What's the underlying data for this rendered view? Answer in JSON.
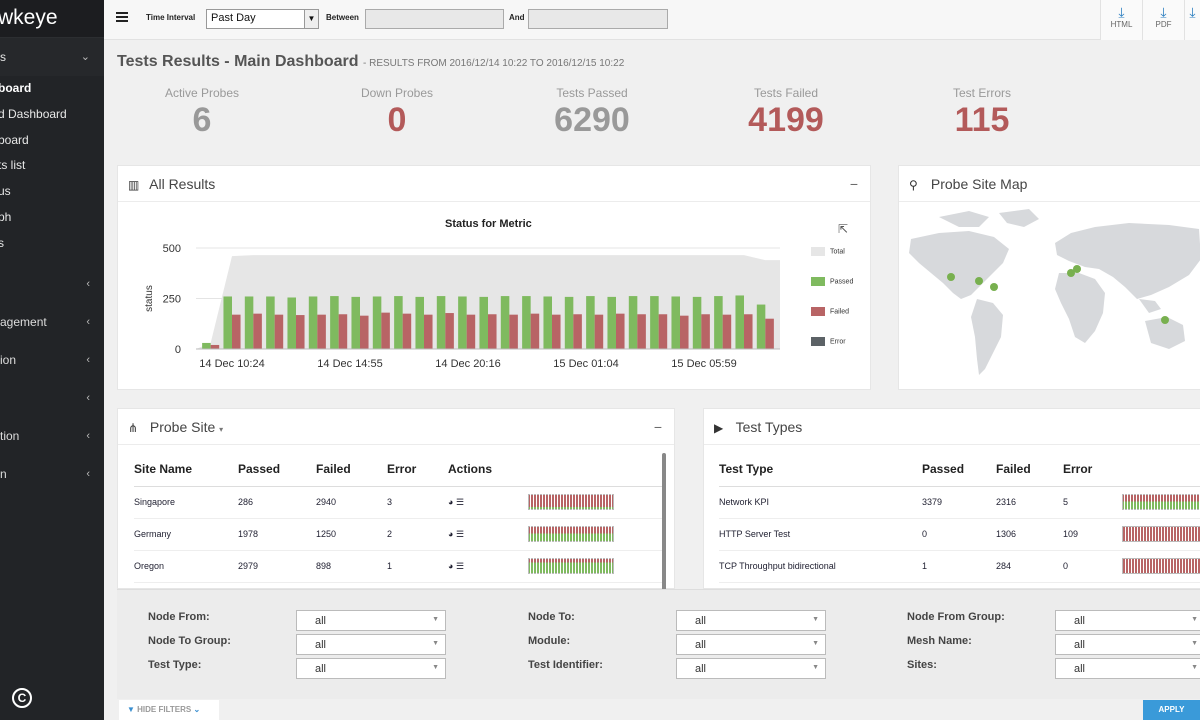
{
  "brand": "wkeye",
  "sidebar": {
    "group_label": "s",
    "items": [
      {
        "label": "board",
        "active": true
      },
      {
        "label": "d Dashboard",
        "active": false
      },
      {
        "label": "board",
        "active": false
      },
      {
        "label": "ts list",
        "active": false
      },
      {
        "label": "us",
        "active": false
      },
      {
        "label": "ph",
        "active": false
      },
      {
        "label": "s",
        "active": false
      }
    ],
    "collapsed_groups": [
      "",
      "agement",
      "ion",
      "",
      "tion",
      "n"
    ]
  },
  "topbar": {
    "time_interval_label": "Time Interval",
    "time_interval_value": "Past Day",
    "between_label": "Between",
    "and_label": "And",
    "between_value": "",
    "and_value": "",
    "export_html": "HTML",
    "export_pdf": "PDF"
  },
  "page": {
    "title": "Tests Results - Main Dashboard",
    "subtitle": "- RESULTS FROM 2016/12/14 10:22 TO 2016/12/15 10:22"
  },
  "kpis": [
    {
      "label": "Active Probes",
      "value": "6",
      "color": "#999999"
    },
    {
      "label": "Down Probes",
      "value": "0",
      "color": "#b35a5a"
    },
    {
      "label": "Tests Passed",
      "value": "6290",
      "color": "#999999"
    },
    {
      "label": "Tests Failed",
      "value": "4199",
      "color": "#b35a5a"
    },
    {
      "label": "Test Errors",
      "value": "115",
      "color": "#b35a5a"
    }
  ],
  "all_results": {
    "title": "All Results"
  },
  "chart_data": {
    "type": "bar",
    "title": "Status for Metric",
    "ylabel": "status",
    "xlabel": "",
    "ylim": [
      0,
      500
    ],
    "yticks": [
      "0",
      "250",
      "500"
    ],
    "xtick_labels": [
      "14 Dec 10:24",
      "14 Dec 14:55",
      "14 Dec 20:16",
      "15 Dec 01:04",
      "15 Dec 05:59"
    ],
    "legend": [
      "Total",
      "Passed",
      "Failed",
      "Error"
    ],
    "colors": {
      "total": "#e6e6e6",
      "passed": "#7fba5f",
      "failed": "#b86465",
      "error": "#5c6266"
    },
    "total": [
      30,
      460,
      465,
      465,
      465,
      465,
      465,
      465,
      465,
      465,
      465,
      465,
      465,
      465,
      465,
      465,
      465,
      465,
      465,
      465,
      465,
      465,
      465,
      465,
      465,
      465,
      440
    ],
    "passed": [
      30,
      260,
      260,
      260,
      255,
      260,
      262,
      258,
      260,
      262,
      258,
      262,
      260,
      258,
      262,
      262,
      260,
      258,
      262,
      258,
      262,
      262,
      260,
      258,
      262,
      265,
      220
    ],
    "failed": [
      20,
      170,
      175,
      170,
      168,
      170,
      172,
      165,
      180,
      175,
      170,
      178,
      170,
      172,
      170,
      175,
      170,
      172,
      170,
      175,
      172,
      172,
      165,
      172,
      170,
      172,
      150
    ],
    "error": [
      0,
      2,
      1,
      1,
      1,
      1,
      1,
      1,
      1,
      1,
      1,
      1,
      1,
      1,
      1,
      1,
      1,
      1,
      1,
      1,
      1,
      1,
      1,
      1,
      1,
      1,
      1
    ]
  },
  "probe_site_map": {
    "title": "Probe Site Map"
  },
  "probe_site": {
    "title": "Probe Site",
    "columns": [
      "Site Name",
      "Passed",
      "Failed",
      "Error",
      "Actions"
    ],
    "rows": [
      {
        "site": "Singapore",
        "passed": "286",
        "failed": "2940",
        "error": "3"
      },
      {
        "site": "Germany",
        "passed": "1978",
        "failed": "1250",
        "error": "2"
      },
      {
        "site": "Oregon",
        "passed": "2979",
        "failed": "898",
        "error": "1"
      }
    ]
  },
  "test_types": {
    "title": "Test Types",
    "columns": [
      "Test Type",
      "Passed",
      "Failed",
      "Error"
    ],
    "rows": [
      {
        "type": "Network KPI",
        "passed": "3379",
        "failed": "2316",
        "error": "5"
      },
      {
        "type": "HTTP Server Test",
        "passed": "0",
        "failed": "1306",
        "error": "109"
      },
      {
        "type": "TCP Throughput bidirectional",
        "passed": "1",
        "failed": "284",
        "error": "0"
      }
    ]
  },
  "filters": {
    "node_from": {
      "label": "Node From:",
      "value": "all"
    },
    "node_to_group": {
      "label": "Node To Group:",
      "value": "all"
    },
    "test_type": {
      "label": "Test Type:",
      "value": "all"
    },
    "node_to": {
      "label": "Node To:",
      "value": "all"
    },
    "module": {
      "label": "Module:",
      "value": "all"
    },
    "test_identifier": {
      "label": "Test Identifier:",
      "value": "all"
    },
    "node_from_group": {
      "label": "Node From Group:",
      "value": "all"
    },
    "mesh_name": {
      "label": "Mesh Name:",
      "value": "all"
    },
    "sites": {
      "label": "Sites:",
      "value": "all"
    },
    "hide_label": "HIDE FILTERS",
    "apply_label": "APPLY"
  }
}
